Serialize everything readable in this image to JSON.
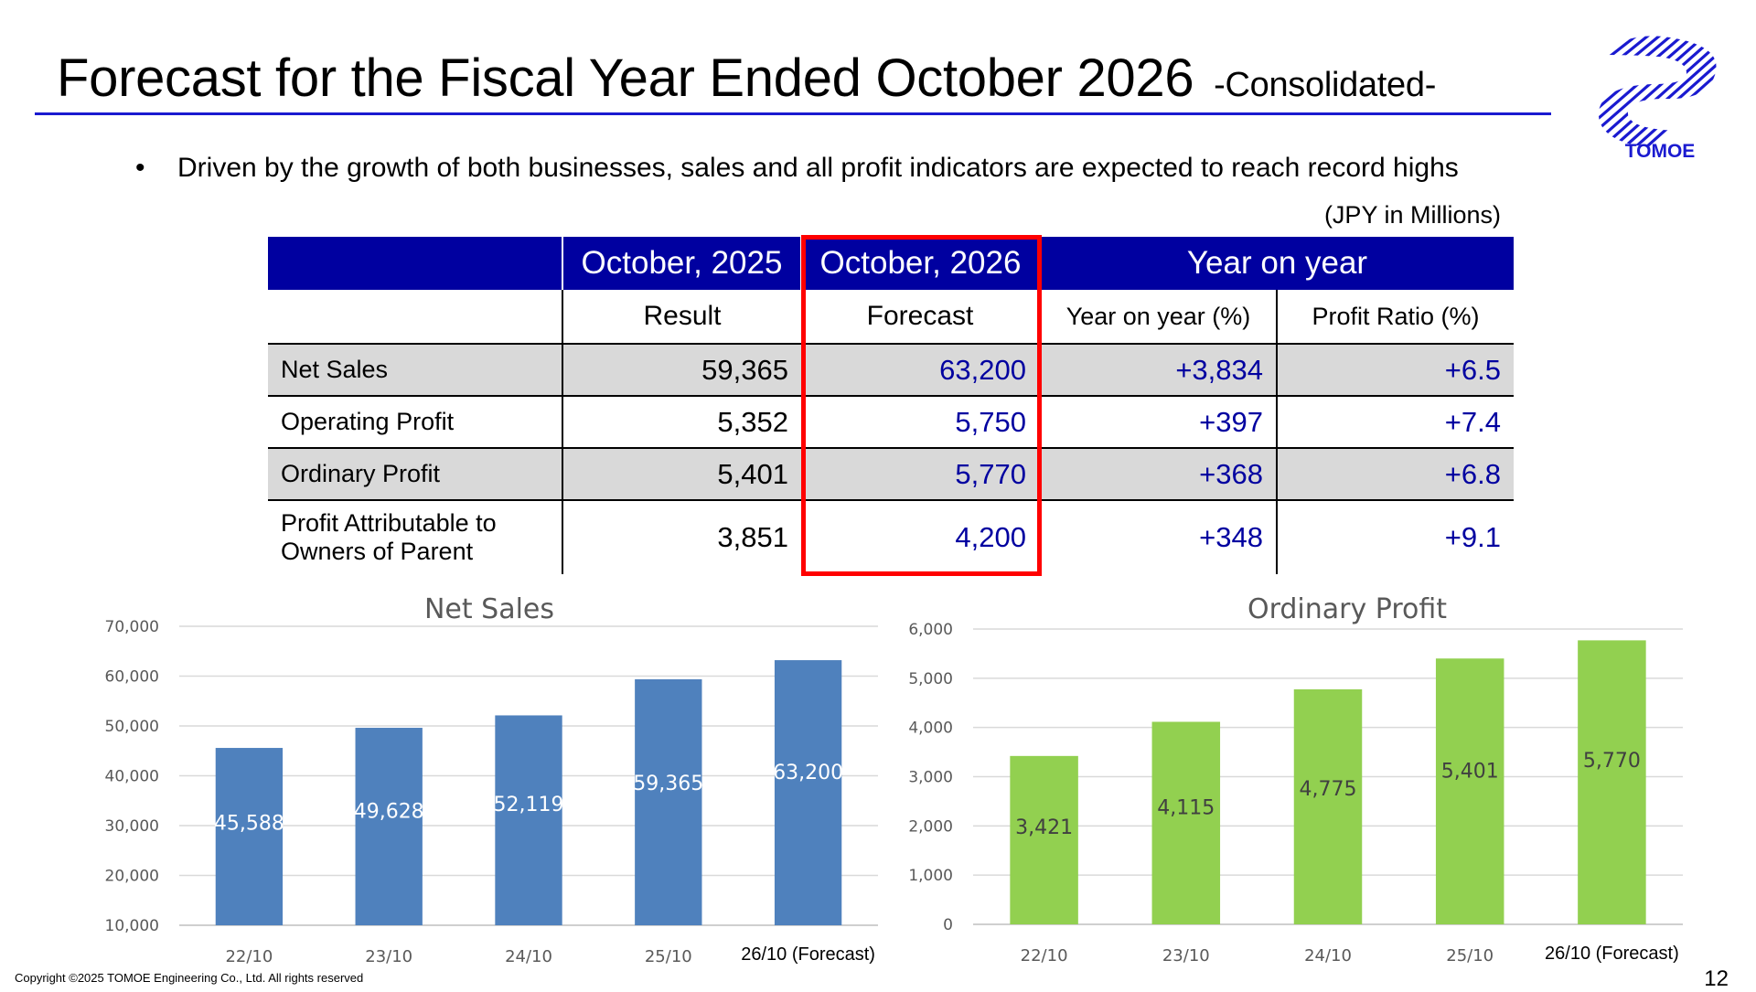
{
  "header": {
    "title": "Forecast for the Fiscal Year Ended October 2026",
    "subtitle": "-Consolidated-",
    "logo_text": "TOMOE"
  },
  "bullet": {
    "dot": "•",
    "text": "Driven by the growth of both businesses, sales and all profit indicators are expected to reach record highs"
  },
  "table": {
    "units": "(JPY in Millions)",
    "header": [
      "",
      "October, 2025",
      "October, 2026",
      "Year on year"
    ],
    "subheader": [
      "",
      "Result",
      "Forecast",
      "Year on year (%)",
      "Profit Ratio (%)"
    ],
    "rows": [
      {
        "label": "Net Sales",
        "result": "59,365",
        "forecast": "63,200",
        "yoy": "+3,834",
        "ratio": "+6.5"
      },
      {
        "label": "Operating Profit",
        "result": "5,352",
        "forecast": "5,750",
        "yoy": "+397",
        "ratio": "+7.4"
      },
      {
        "label": "Ordinary Profit",
        "result": "5,401",
        "forecast": "5,770",
        "yoy": "+368",
        "ratio": "+6.8"
      },
      {
        "label_line1": "Profit Attributable to",
        "label_line2": "Owners of Parent",
        "result": "3,851",
        "forecast": "4,200",
        "yoy": "+348",
        "ratio": "+9.1"
      }
    ]
  },
  "chart_data": [
    {
      "type": "bar",
      "title": "Net Sales",
      "categories": [
        "22/10",
        "23/10",
        "24/10",
        "25/10",
        "26/10 (Forecast)"
      ],
      "values": [
        45588,
        49628,
        52119,
        59365,
        63200
      ],
      "data_labels": [
        "45,588",
        "49,628",
        "52,119",
        "59,365",
        "63,200"
      ],
      "ylim": [
        10000,
        70000
      ],
      "yticks": [
        10000,
        20000,
        30000,
        40000,
        50000,
        60000,
        70000
      ],
      "ytick_labels": [
        "10,000",
        "20,000",
        "30,000",
        "40,000",
        "50,000",
        "60,000",
        "70,000"
      ],
      "grid": true,
      "bar_color": "#4f81bd",
      "label_color": "#ffffff"
    },
    {
      "type": "bar",
      "title": "Ordinary Profit",
      "categories": [
        "22/10",
        "23/10",
        "24/10",
        "25/10",
        "26/10 (Forecast)"
      ],
      "values": [
        3421,
        4115,
        4775,
        5401,
        5770
      ],
      "data_labels": [
        "3,421",
        "4,115",
        "4,775",
        "5,401",
        "5,770"
      ],
      "ylim": [
        0,
        6000
      ],
      "yticks": [
        0,
        1000,
        2000,
        3000,
        4000,
        5000,
        6000
      ],
      "ytick_labels": [
        "0",
        "1,000",
        "2,000",
        "3,000",
        "4,000",
        "5,000",
        "6,000"
      ],
      "grid": true,
      "bar_color": "#92d050",
      "label_color": "#404040"
    }
  ],
  "footer": {
    "copyright": "Copyright ©2025 TOMOE Engineering Co., Ltd. All rights reserved",
    "page_number": "12"
  }
}
